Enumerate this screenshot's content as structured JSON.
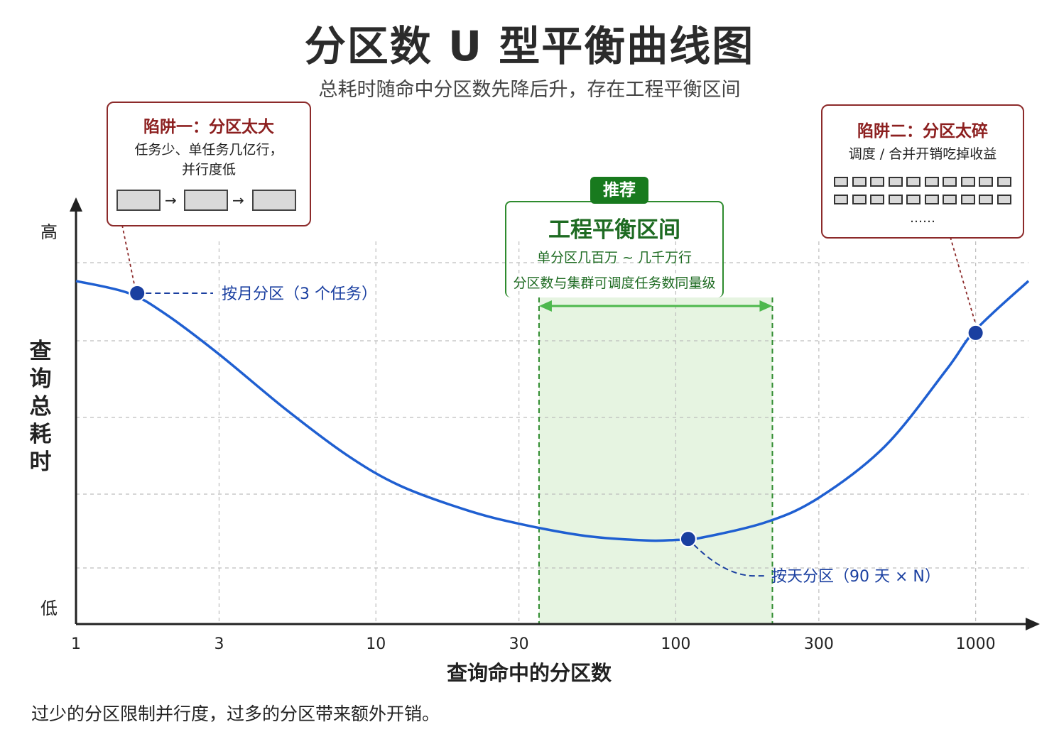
{
  "title": "分区数 U 型平衡曲线图",
  "subtitle": "总耗时随命中分区数先降后升，存在工程平衡区间",
  "footer": "过少的分区限制并行度，过多的分区带来额外开销。",
  "chart_data": {
    "type": "line",
    "x_scale": "log",
    "xlim": [
      1,
      1500
    ],
    "ylim": [
      0,
      100
    ],
    "xlabel": "查询命中的分区数",
    "ylabel": "查询总耗时",
    "y_tick_labels": {
      "top": "高",
      "bottom": "低"
    },
    "x_ticks": [
      {
        "value": 1,
        "label": "1"
      },
      {
        "value": 3,
        "label": "3"
      },
      {
        "value": 10,
        "label": "10"
      },
      {
        "value": 30,
        "label": "30"
      },
      {
        "value": 100,
        "label": "100"
      },
      {
        "value": 300,
        "label": "300"
      },
      {
        "value": 1000,
        "label": "1000"
      }
    ],
    "grid": true,
    "series": [
      {
        "color": "#1f5fd1",
        "points": [
          [
            1,
            94
          ],
          [
            1.5,
            90
          ],
          [
            2,
            83
          ],
          [
            3,
            70
          ],
          [
            5,
            52
          ],
          [
            8,
            37
          ],
          [
            12,
            27
          ],
          [
            20,
            19
          ],
          [
            30,
            14.5
          ],
          [
            50,
            10.5
          ],
          [
            80,
            9
          ],
          [
            100,
            9.2
          ],
          [
            120,
            9.8
          ],
          [
            200,
            15
          ],
          [
            300,
            23
          ],
          [
            500,
            40
          ],
          [
            800,
            65
          ],
          [
            1000,
            78
          ],
          [
            1500,
            94
          ]
        ]
      }
    ],
    "highlighted_points": [
      {
        "x": 1.6,
        "y": 90,
        "color": "#1a3fa0",
        "label": "按月分区（3 个任务）"
      },
      {
        "x": 110,
        "y": 9.5,
        "color": "#1a3fa0",
        "label": "按天分区（90 天 × N）"
      },
      {
        "x": 1000,
        "y": 77,
        "color": "#1a3fa0",
        "label": ""
      }
    ],
    "recommended_range": {
      "x": [
        35,
        210
      ],
      "badge": "推荐",
      "title": "工程平衡区间",
      "line1": "单分区几百万 ~ 几千万行",
      "line2": "分区数与集群可调度任务数同量级",
      "fill_color": "#e6f4e1",
      "border_color": "#2e8b2e"
    }
  },
  "trap_left": {
    "title": "陷阱一：分区太大",
    "line1": "任务少、单任务几亿行，",
    "line2": "并行度低",
    "flow_arrow": "→"
  },
  "trap_right": {
    "title": "陷阱二：分区太碎",
    "line1": "调度 / 合并开销吃掉收益",
    "ellipsis": "……"
  },
  "colors": {
    "curve": "#1f5fd1",
    "trap_border": "#8c2a2a",
    "trap_title": "#8c1f1f",
    "zone_green": "#2e8b2e",
    "badge_bg": "#187a1e",
    "annotation_blue": "#1a3fa0"
  }
}
